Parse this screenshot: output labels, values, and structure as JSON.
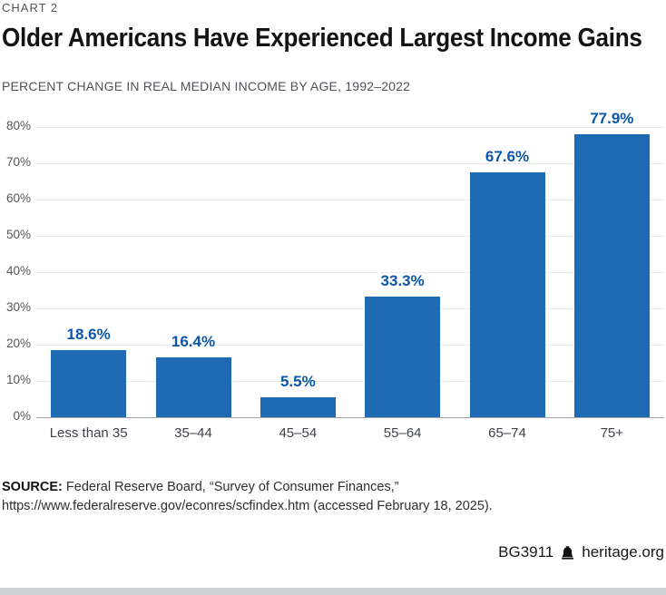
{
  "page": {
    "kicker": "CHART 2",
    "title": "Older Americans Have Experienced Largest Income Gains",
    "subtitle": "PERCENT CHANGE IN REAL MEDIAN INCOME BY AGE, 1992–2022"
  },
  "chart_data": {
    "type": "bar",
    "title": "Older Americans Have Experienced Largest Income Gains",
    "categories": [
      "Less than 35",
      "35–44",
      "45–54",
      "55–64",
      "65–74",
      "75+"
    ],
    "values": [
      18.6,
      16.4,
      5.5,
      33.3,
      67.6,
      77.9
    ],
    "value_labels": [
      "18.6%",
      "16.4%",
      "5.5%",
      "33.3%",
      "67.6%",
      "77.9%"
    ],
    "xlabel": "",
    "ylabel": "",
    "ylim": [
      0,
      80
    ],
    "ytick_step": 10,
    "ytick_labels": [
      "0%",
      "10%",
      "20%",
      "30%",
      "40%",
      "50%",
      "60%",
      "70%",
      "80%"
    ],
    "grid": true,
    "legend": false,
    "bar_color": "#1e6ab3",
    "value_label_color": "#0a57a8"
  },
  "source": {
    "label": "SOURCE:",
    "line1_rest": " Federal Reserve Board, “Survey of Consumer Finances,”",
    "line2": "https://www.federalreserve.gov/econres/scfindex.htm (accessed February 18, 2025)."
  },
  "footer": {
    "report_id": "BG3911",
    "site": "heritage.org"
  },
  "colors": {
    "bar": "#1e6ab3",
    "value_label": "#0a57a8",
    "gridline": "#eaeaea",
    "axis_line": "#9fa3a7",
    "bottom_strip": "#cdd0d3",
    "title_text": "#141414",
    "muted_text": "#54575b"
  }
}
